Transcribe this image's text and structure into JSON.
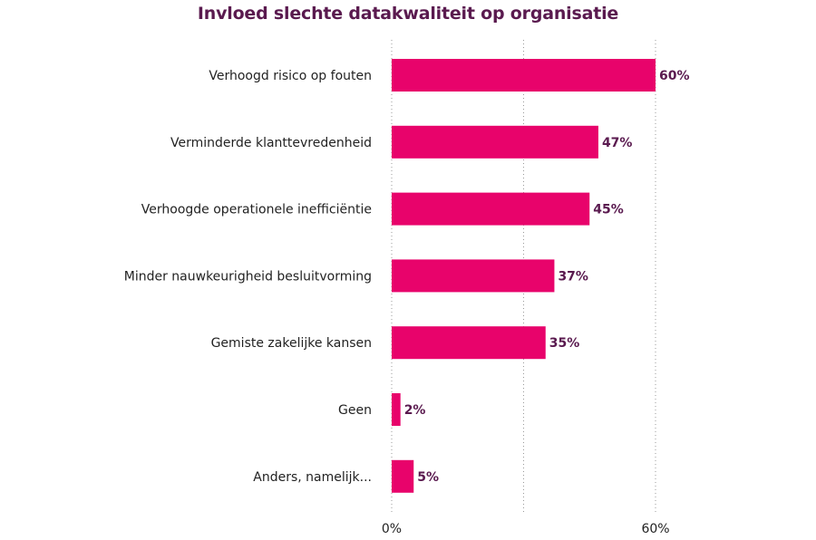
{
  "chart_data": {
    "type": "bar",
    "orientation": "horizontal",
    "title": "Invloed slechte datakwaliteit op organisatie",
    "categories": [
      "Verhoogd risico op fouten",
      "Verminderde klanttevredenheid",
      "Verhoogde operationele inefficiëntie",
      "Minder nauwkeurigheid besluitvorming",
      "Gemiste zakelijke kansen",
      "Geen",
      "Anders, namelijk..."
    ],
    "values": [
      60,
      47,
      45,
      37,
      35,
      2,
      5
    ],
    "value_labels": [
      "60%",
      "47%",
      "45%",
      "37%",
      "35%",
      "2%",
      "5%"
    ],
    "xlim": [
      0,
      60
    ],
    "x_ticks": [
      {
        "value": 0,
        "label": "0%"
      },
      {
        "value": 60,
        "label": "60%"
      }
    ],
    "gridlines": [
      0,
      30,
      60
    ],
    "grid": true,
    "bar_color": "#e8036b",
    "value_label_color": "#5a1a4f"
  }
}
